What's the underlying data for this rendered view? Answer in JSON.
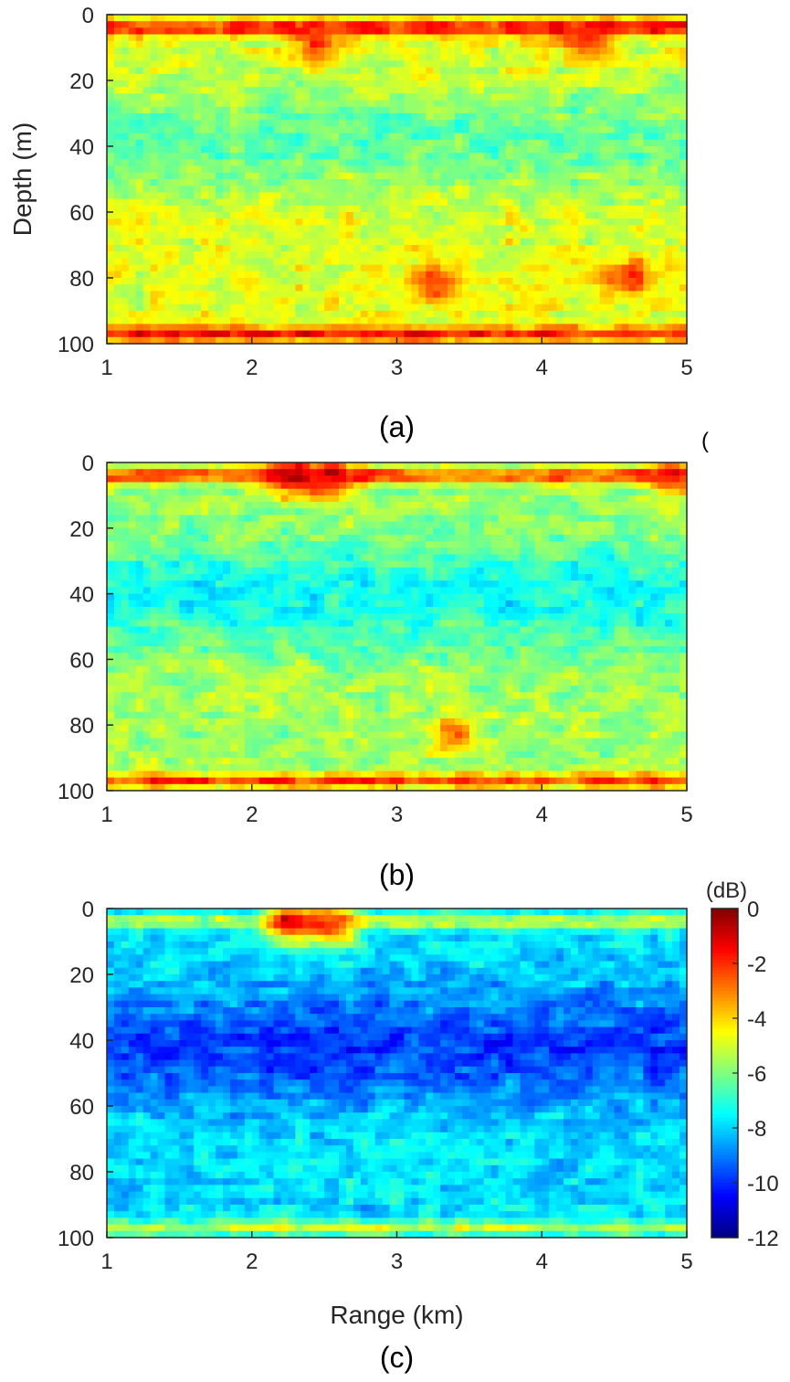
{
  "chart_data": [
    {
      "type": "heatmap",
      "panel_label": "(a)",
      "ylabel": "Depth (m)",
      "xlabel": "",
      "x_ticks": [
        "1",
        "2",
        "3",
        "4",
        "5"
      ],
      "y_ticks": [
        "0",
        "20",
        "40",
        "60",
        "80",
        "100"
      ],
      "xlim": [
        1,
        5
      ],
      "ylim": [
        0,
        100
      ],
      "y_reversed": true,
      "pattern": {
        "base_db": -4.8,
        "mid_db": -6.4,
        "mid_depth": 38,
        "mid_width": 16,
        "surface_db": -1.5,
        "bottom_db": -1.6,
        "hot_patches": [
          {
            "x": 2.45,
            "y": 8,
            "db": -1.5
          },
          {
            "x": 4.3,
            "y": 8,
            "db": -1.5
          },
          {
            "x": 3.3,
            "y": 82,
            "db": -1.8
          },
          {
            "x": 4.6,
            "y": 80,
            "db": -2.0
          }
        ],
        "noise": 0.9
      }
    },
    {
      "type": "heatmap",
      "panel_label": "(b)",
      "ylabel": "",
      "xlabel": "",
      "x_ticks": [
        "1",
        "2",
        "3",
        "4",
        "5"
      ],
      "y_ticks": [
        "0",
        "20",
        "40",
        "60",
        "80",
        "100"
      ],
      "xlim": [
        1,
        5
      ],
      "ylim": [
        0,
        100
      ],
      "y_reversed": true,
      "pattern": {
        "base_db": -5.6,
        "mid_db": -7.4,
        "mid_depth": 40,
        "mid_width": 16,
        "surface_db": -2.2,
        "bottom_db": -2.3,
        "hot_patches": [
          {
            "x": 2.28,
            "y": 4,
            "db": -0.5
          },
          {
            "x": 2.55,
            "y": 5,
            "db": -0.8
          },
          {
            "x": 4.9,
            "y": 5,
            "db": -1.2
          },
          {
            "x": 3.4,
            "y": 82,
            "db": -3.0
          }
        ],
        "noise": 0.9
      }
    },
    {
      "type": "heatmap",
      "panel_label": "(c)",
      "ylabel": "",
      "xlabel": "Range (km)",
      "x_ticks": [
        "1",
        "2",
        "3",
        "4",
        "5"
      ],
      "y_ticks": [
        "0",
        "20",
        "40",
        "60",
        "80",
        "100"
      ],
      "xlim": [
        1,
        5
      ],
      "ylim": [
        0,
        100
      ],
      "y_reversed": true,
      "pattern": {
        "base_db": -7.8,
        "mid_db": -9.8,
        "mid_depth": 42,
        "mid_width": 17,
        "surface_db": -5.0,
        "bottom_db": -5.2,
        "hot_patches": [
          {
            "x": 2.28,
            "y": 4,
            "db": -1.0
          },
          {
            "x": 2.55,
            "y": 5,
            "db": -1.5
          }
        ],
        "noise": 0.9
      }
    }
  ],
  "colorbar": {
    "unit_label": "(dB)",
    "ticks": [
      "0",
      "-2",
      "-4",
      "-6",
      "-8",
      "-10",
      "-12"
    ],
    "min": -12,
    "max": 0,
    "colormap": "jet"
  },
  "partial_glyph": "("
}
